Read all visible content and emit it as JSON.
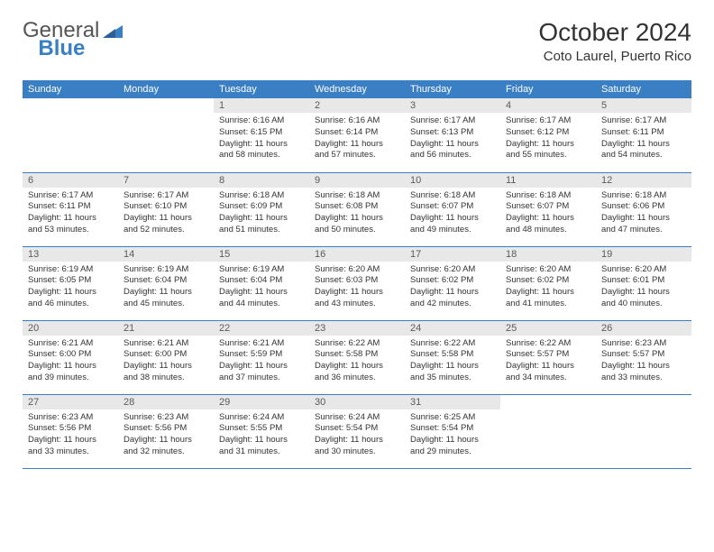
{
  "brand": {
    "general": "General",
    "blue": "Blue"
  },
  "title": "October 2024",
  "location": "Coto Laurel, Puerto Rico",
  "colors": {
    "header_blue": "#3a7fc4",
    "daynum_bg": "#e8e8e8",
    "text": "#333333",
    "background": "#ffffff"
  },
  "weekdays": [
    "Sunday",
    "Monday",
    "Tuesday",
    "Wednesday",
    "Thursday",
    "Friday",
    "Saturday"
  ],
  "label_sunrise": "Sunrise: ",
  "label_sunset": "Sunset: ",
  "label_daylight": "Daylight: ",
  "weeks": [
    [
      null,
      null,
      {
        "n": "1",
        "sr": "6:16 AM",
        "ss": "6:15 PM",
        "dl": "11 hours and 58 minutes."
      },
      {
        "n": "2",
        "sr": "6:16 AM",
        "ss": "6:14 PM",
        "dl": "11 hours and 57 minutes."
      },
      {
        "n": "3",
        "sr": "6:17 AM",
        "ss": "6:13 PM",
        "dl": "11 hours and 56 minutes."
      },
      {
        "n": "4",
        "sr": "6:17 AM",
        "ss": "6:12 PM",
        "dl": "11 hours and 55 minutes."
      },
      {
        "n": "5",
        "sr": "6:17 AM",
        "ss": "6:11 PM",
        "dl": "11 hours and 54 minutes."
      }
    ],
    [
      {
        "n": "6",
        "sr": "6:17 AM",
        "ss": "6:11 PM",
        "dl": "11 hours and 53 minutes."
      },
      {
        "n": "7",
        "sr": "6:17 AM",
        "ss": "6:10 PM",
        "dl": "11 hours and 52 minutes."
      },
      {
        "n": "8",
        "sr": "6:18 AM",
        "ss": "6:09 PM",
        "dl": "11 hours and 51 minutes."
      },
      {
        "n": "9",
        "sr": "6:18 AM",
        "ss": "6:08 PM",
        "dl": "11 hours and 50 minutes."
      },
      {
        "n": "10",
        "sr": "6:18 AM",
        "ss": "6:07 PM",
        "dl": "11 hours and 49 minutes."
      },
      {
        "n": "11",
        "sr": "6:18 AM",
        "ss": "6:07 PM",
        "dl": "11 hours and 48 minutes."
      },
      {
        "n": "12",
        "sr": "6:18 AM",
        "ss": "6:06 PM",
        "dl": "11 hours and 47 minutes."
      }
    ],
    [
      {
        "n": "13",
        "sr": "6:19 AM",
        "ss": "6:05 PM",
        "dl": "11 hours and 46 minutes."
      },
      {
        "n": "14",
        "sr": "6:19 AM",
        "ss": "6:04 PM",
        "dl": "11 hours and 45 minutes."
      },
      {
        "n": "15",
        "sr": "6:19 AM",
        "ss": "6:04 PM",
        "dl": "11 hours and 44 minutes."
      },
      {
        "n": "16",
        "sr": "6:20 AM",
        "ss": "6:03 PM",
        "dl": "11 hours and 43 minutes."
      },
      {
        "n": "17",
        "sr": "6:20 AM",
        "ss": "6:02 PM",
        "dl": "11 hours and 42 minutes."
      },
      {
        "n": "18",
        "sr": "6:20 AM",
        "ss": "6:02 PM",
        "dl": "11 hours and 41 minutes."
      },
      {
        "n": "19",
        "sr": "6:20 AM",
        "ss": "6:01 PM",
        "dl": "11 hours and 40 minutes."
      }
    ],
    [
      {
        "n": "20",
        "sr": "6:21 AM",
        "ss": "6:00 PM",
        "dl": "11 hours and 39 minutes."
      },
      {
        "n": "21",
        "sr": "6:21 AM",
        "ss": "6:00 PM",
        "dl": "11 hours and 38 minutes."
      },
      {
        "n": "22",
        "sr": "6:21 AM",
        "ss": "5:59 PM",
        "dl": "11 hours and 37 minutes."
      },
      {
        "n": "23",
        "sr": "6:22 AM",
        "ss": "5:58 PM",
        "dl": "11 hours and 36 minutes."
      },
      {
        "n": "24",
        "sr": "6:22 AM",
        "ss": "5:58 PM",
        "dl": "11 hours and 35 minutes."
      },
      {
        "n": "25",
        "sr": "6:22 AM",
        "ss": "5:57 PM",
        "dl": "11 hours and 34 minutes."
      },
      {
        "n": "26",
        "sr": "6:23 AM",
        "ss": "5:57 PM",
        "dl": "11 hours and 33 minutes."
      }
    ],
    [
      {
        "n": "27",
        "sr": "6:23 AM",
        "ss": "5:56 PM",
        "dl": "11 hours and 33 minutes."
      },
      {
        "n": "28",
        "sr": "6:23 AM",
        "ss": "5:56 PM",
        "dl": "11 hours and 32 minutes."
      },
      {
        "n": "29",
        "sr": "6:24 AM",
        "ss": "5:55 PM",
        "dl": "11 hours and 31 minutes."
      },
      {
        "n": "30",
        "sr": "6:24 AM",
        "ss": "5:54 PM",
        "dl": "11 hours and 30 minutes."
      },
      {
        "n": "31",
        "sr": "6:25 AM",
        "ss": "5:54 PM",
        "dl": "11 hours and 29 minutes."
      },
      null,
      null
    ]
  ]
}
